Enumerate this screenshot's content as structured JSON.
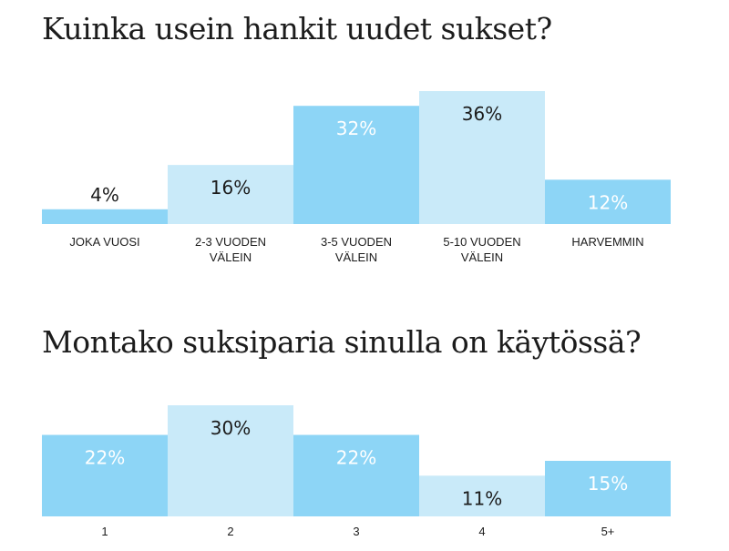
{
  "chart_data": [
    {
      "type": "bar",
      "title": "Kuinka usein hankit uudet sukset?",
      "categories": [
        "JOKA VUOSI",
        "2-3 VUODEN VÄLEIN",
        "3-5 VUODEN VÄLEIN",
        "5-10 VUODEN VÄLEIN",
        "HARVEMMIN"
      ],
      "category_lines": [
        [
          "JOKA VUOSI"
        ],
        [
          "2-3 VUODEN",
          "VÄLEIN"
        ],
        [
          "3-5 VUODEN",
          "VÄLEIN"
        ],
        [
          "5-10 VUODEN",
          "VÄLEIN"
        ],
        [
          "HARVEMMIN"
        ]
      ],
      "values": [
        4,
        16,
        32,
        36,
        12
      ],
      "value_labels": [
        "4%",
        "16%",
        "32%",
        "36%",
        "12%"
      ],
      "ylim": [
        0,
        36
      ],
      "grid": false,
      "legend": "none"
    },
    {
      "type": "bar",
      "title": "Montako suksiparia sinulla on käytössä?",
      "categories": [
        "1",
        "2",
        "3",
        "4",
        "5+"
      ],
      "category_lines": [
        [
          "1"
        ],
        [
          "2"
        ],
        [
          "3"
        ],
        [
          "4"
        ],
        [
          "5+"
        ]
      ],
      "values": [
        22,
        30,
        22,
        11,
        15
      ],
      "value_labels": [
        "22%",
        "30%",
        "22%",
        "11%",
        "15%"
      ],
      "ylim": [
        0,
        30
      ],
      "grid": false,
      "legend": "none"
    }
  ],
  "colors": {
    "dark_bar": "#8dd5f6",
    "light_bar": "#c9eaf9",
    "text_dark": "#1c1c1c",
    "text_on_dark": "#ffffff"
  }
}
